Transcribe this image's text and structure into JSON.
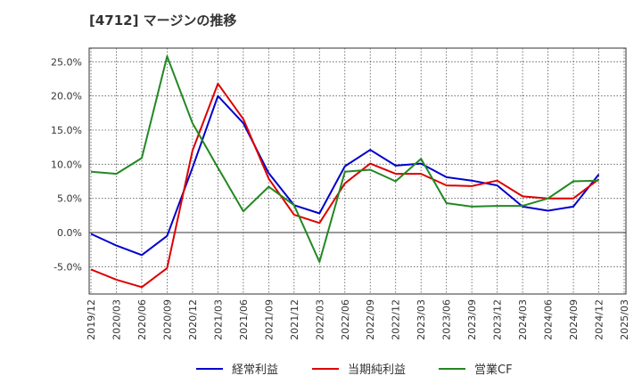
{
  "chart_data": {
    "type": "line",
    "title": "[4712]  マージンの推移",
    "xlabel": "",
    "ylabel": "",
    "x": [
      "2019/12",
      "2020/03",
      "2020/06",
      "2020/09",
      "2020/12",
      "2021/03",
      "2021/06",
      "2021/09",
      "2021/12",
      "2022/03",
      "2022/06",
      "2022/09",
      "2022/12",
      "2023/03",
      "2023/06",
      "2023/09",
      "2023/12",
      "2024/03",
      "2024/06",
      "2024/09",
      "2024/12",
      "2025/03"
    ],
    "ylim": [
      -9,
      27
    ],
    "yticks": [
      -5,
      0,
      5,
      10,
      15,
      20,
      25
    ],
    "ytick_labels": [
      "-5.0%",
      "0.0%",
      "5.0%",
      "10.0%",
      "15.0%",
      "20.0%",
      "25.0%"
    ],
    "grid": true,
    "legend_position": "bottom",
    "series": [
      {
        "name": "経常利益",
        "color": "#0000cc",
        "values": [
          -0.2,
          -1.9,
          -3.3,
          -0.5,
          9.5,
          20.0,
          16.0,
          8.7,
          4.0,
          2.8,
          9.7,
          12.1,
          9.8,
          10.1,
          8.1,
          7.6,
          6.9,
          3.8,
          3.2,
          3.8,
          8.5,
          null
        ]
      },
      {
        "name": "当期純利益",
        "color": "#dd0000",
        "values": [
          -5.4,
          -6.9,
          -8.0,
          -5.2,
          12.0,
          21.8,
          16.6,
          7.9,
          2.6,
          1.4,
          7.2,
          10.1,
          8.6,
          8.6,
          6.9,
          6.8,
          7.6,
          5.3,
          5.0,
          5.0,
          7.8,
          null
        ]
      },
      {
        "name": "営業CF",
        "color": "#228822",
        "values": [
          8.9,
          8.6,
          10.9,
          25.8,
          16.0,
          9.5,
          3.1,
          6.7,
          4.0,
          -4.3,
          8.9,
          9.2,
          7.5,
          10.8,
          4.3,
          3.8,
          3.9,
          3.9,
          5.0,
          7.5,
          7.6,
          null
        ]
      }
    ]
  }
}
